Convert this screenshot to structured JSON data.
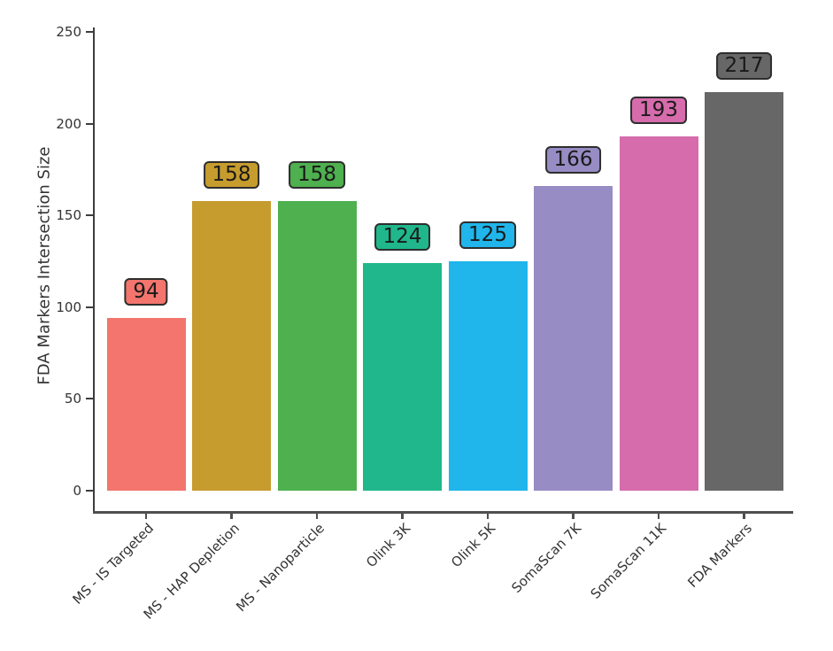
{
  "figure": {
    "background": "#ffffff"
  },
  "chart_data": {
    "type": "bar",
    "title": "",
    "xlabel": "",
    "ylabel": "FDA Markers Intersection Size",
    "categories": [
      "MS - IS Targeted",
      "MS - HAP Depletion",
      "MS - Nanoparticle",
      "Olink 3K",
      "Olink 5K",
      "SomaScan 7K",
      "SomaScan 11K",
      "FDA Markers"
    ],
    "values": [
      94,
      158,
      158,
      124,
      125,
      166,
      193,
      217
    ],
    "bar_colors": [
      "#f3756d",
      "#c69c2e",
      "#4eb04e",
      "#1fb78b",
      "#20b5eb",
      "#978cc3",
      "#d66cac",
      "#676767"
    ],
    "value_labels_shown": true,
    "value_label_border_color": "#2e2e2e",
    "value_label_text_color": "#1a1a1a",
    "y_ticks": [
      0,
      50,
      100,
      150,
      200,
      250
    ],
    "ylim": [
      0,
      250
    ],
    "grid": false,
    "legend": "none",
    "axis_color": "#3d3d3d",
    "x_axis_color": "#4f4f4f",
    "tick_text_color": "#333333"
  }
}
